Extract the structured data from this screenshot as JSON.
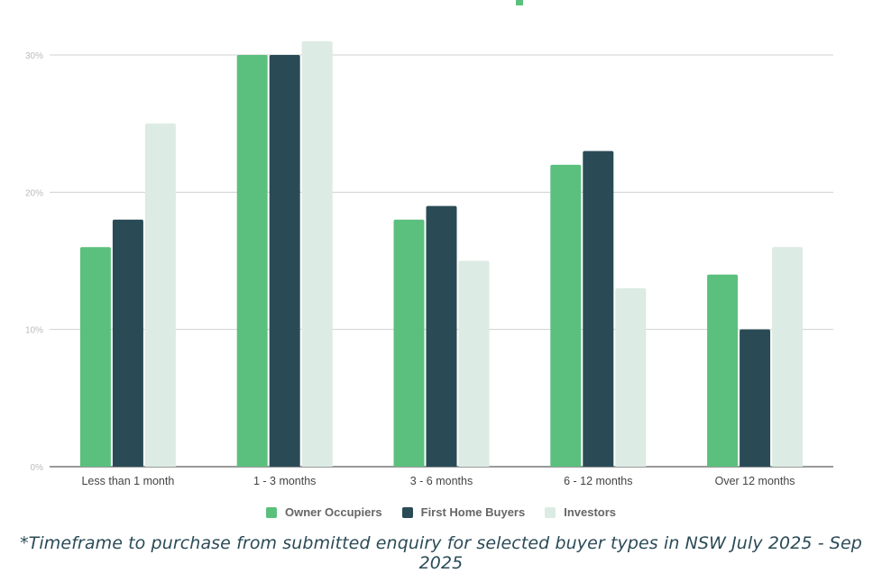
{
  "chart_data": {
    "type": "bar",
    "categories": [
      "Less than 1 month",
      "1 - 3 months",
      "3 - 6 months",
      "6 - 12 months",
      "Over 12 months"
    ],
    "series": [
      {
        "name": "Owner Occupiers",
        "color": "#5bc07d",
        "values": [
          16,
          30,
          18,
          22,
          14
        ]
      },
      {
        "name": "First Home Buyers",
        "color": "#2a4b56",
        "values": [
          18,
          30,
          19,
          23,
          10
        ]
      },
      {
        "name": "Investors",
        "color": "#dcebe3",
        "values": [
          25,
          31,
          15,
          13,
          16
        ]
      }
    ],
    "yticks": [
      "0%",
      "10%",
      "20%",
      "30%"
    ],
    "ytick_values": [
      0,
      10,
      20,
      30
    ],
    "ylim": [
      0,
      30
    ],
    "grid": true,
    "legend": "bottom"
  },
  "caption": "*Timeframe to purchase from submitted enquiry for selected buyer types in NSW July 2025 - Sep 2025"
}
